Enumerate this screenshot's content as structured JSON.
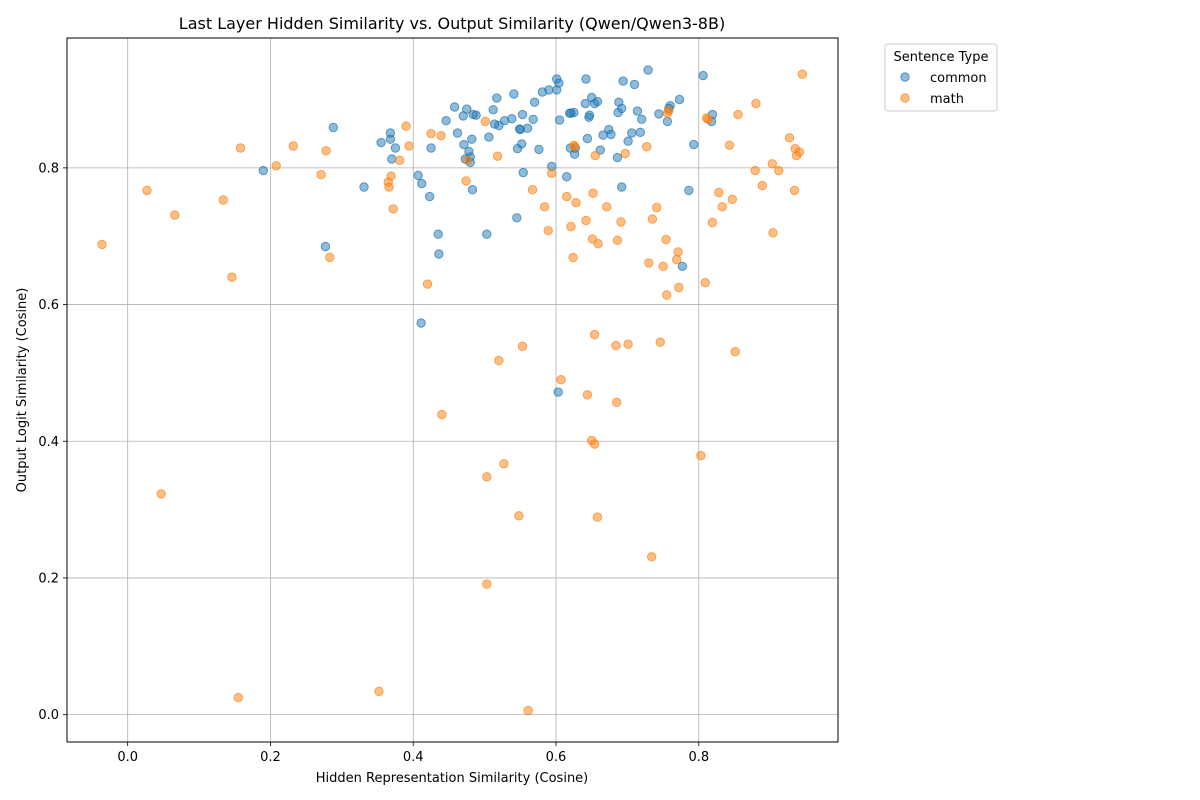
{
  "chart_data": {
    "type": "scatter",
    "title": "Last Layer Hidden Similarity vs. Output Similarity (Qwen/Qwen3-8B)",
    "xlabel": "Hidden Representation Similarity (Cosine)",
    "ylabel": "Output Logit Similarity (Cosine)",
    "xlim": [
      -0.085,
      0.995
    ],
    "ylim": [
      -0.04,
      0.99
    ],
    "xticks": [
      0.0,
      0.2,
      0.4,
      0.6,
      0.8
    ],
    "yticks": [
      0.0,
      0.2,
      0.4,
      0.6,
      0.8
    ],
    "xtick_labels": [
      "0.0",
      "0.2",
      "0.4",
      "0.6",
      "0.8"
    ],
    "ytick_labels": [
      "0.0",
      "0.2",
      "0.4",
      "0.6",
      "0.8"
    ],
    "grid": true,
    "legend": {
      "title": "Sentence Type",
      "placement": "outside-top-right"
    },
    "series": [
      {
        "name": "common",
        "color": "#1f77b4",
        "points": [
          [
            0.19,
            0.796
          ],
          [
            0.277,
            0.685
          ],
          [
            0.288,
            0.859
          ],
          [
            0.331,
            0.772
          ],
          [
            0.355,
            0.837
          ],
          [
            0.368,
            0.851
          ],
          [
            0.368,
            0.842
          ],
          [
            0.37,
            0.813
          ],
          [
            0.375,
            0.829
          ],
          [
            0.407,
            0.789
          ],
          [
            0.411,
            0.573
          ],
          [
            0.412,
            0.777
          ],
          [
            0.423,
            0.758
          ],
          [
            0.425,
            0.829
          ],
          [
            0.435,
            0.703
          ],
          [
            0.436,
            0.674
          ],
          [
            0.446,
            0.869
          ],
          [
            0.458,
            0.889
          ],
          [
            0.462,
            0.851
          ],
          [
            0.47,
            0.876
          ],
          [
            0.471,
            0.834
          ],
          [
            0.473,
            0.813
          ],
          [
            0.475,
            0.886
          ],
          [
            0.478,
            0.824
          ],
          [
            0.48,
            0.816
          ],
          [
            0.48,
            0.808
          ],
          [
            0.482,
            0.842
          ],
          [
            0.483,
            0.768
          ],
          [
            0.484,
            0.878
          ],
          [
            0.488,
            0.877
          ],
          [
            0.503,
            0.703
          ],
          [
            0.506,
            0.845
          ],
          [
            0.512,
            0.885
          ],
          [
            0.514,
            0.864
          ],
          [
            0.517,
            0.902
          ],
          [
            0.52,
            0.862
          ],
          [
            0.528,
            0.869
          ],
          [
            0.538,
            0.872
          ],
          [
            0.541,
            0.908
          ],
          [
            0.545,
            0.727
          ],
          [
            0.546,
            0.828
          ],
          [
            0.549,
            0.857
          ],
          [
            0.55,
            0.856
          ],
          [
            0.552,
            0.835
          ],
          [
            0.553,
            0.878
          ],
          [
            0.554,
            0.793
          ],
          [
            0.56,
            0.858
          ],
          [
            0.568,
            0.871
          ],
          [
            0.57,
            0.896
          ],
          [
            0.576,
            0.827
          ],
          [
            0.581,
            0.911
          ],
          [
            0.59,
            0.914
          ],
          [
            0.594,
            0.802
          ],
          [
            0.601,
            0.93
          ],
          [
            0.601,
            0.914
          ],
          [
            0.603,
            0.472
          ],
          [
            0.604,
            0.924
          ],
          [
            0.605,
            0.87
          ],
          [
            0.615,
            0.787
          ],
          [
            0.619,
            0.88
          ],
          [
            0.62,
            0.829
          ],
          [
            0.621,
            0.88
          ],
          [
            0.625,
            0.881
          ],
          [
            0.626,
            0.82
          ],
          [
            0.627,
            0.829
          ],
          [
            0.641,
            0.894
          ],
          [
            0.642,
            0.93
          ],
          [
            0.644,
            0.843
          ],
          [
            0.646,
            0.874
          ],
          [
            0.647,
            0.877
          ],
          [
            0.65,
            0.903
          ],
          [
            0.654,
            0.894
          ],
          [
            0.658,
            0.897
          ],
          [
            0.662,
            0.826
          ],
          [
            0.666,
            0.848
          ],
          [
            0.674,
            0.856
          ],
          [
            0.677,
            0.849
          ],
          [
            0.686,
            0.815
          ],
          [
            0.687,
            0.881
          ],
          [
            0.688,
            0.896
          ],
          [
            0.692,
            0.772
          ],
          [
            0.692,
            0.887
          ],
          [
            0.694,
            0.927
          ],
          [
            0.701,
            0.839
          ],
          [
            0.706,
            0.851
          ],
          [
            0.71,
            0.922
          ],
          [
            0.714,
            0.883
          ],
          [
            0.718,
            0.852
          ],
          [
            0.72,
            0.871
          ],
          [
            0.729,
            0.943
          ],
          [
            0.744,
            0.879
          ],
          [
            0.756,
            0.868
          ],
          [
            0.758,
            0.887
          ],
          [
            0.76,
            0.891
          ],
          [
            0.773,
            0.9
          ],
          [
            0.777,
            0.656
          ],
          [
            0.786,
            0.767
          ],
          [
            0.793,
            0.834
          ],
          [
            0.806,
            0.935
          ],
          [
            0.818,
            0.868
          ],
          [
            0.819,
            0.878
          ]
        ]
      },
      {
        "name": "math",
        "color": "#ff7f0e",
        "points": [
          [
            -0.036,
            0.688
          ],
          [
            0.027,
            0.767
          ],
          [
            0.047,
            0.323
          ],
          [
            0.066,
            0.731
          ],
          [
            0.134,
            0.753
          ],
          [
            0.146,
            0.64
          ],
          [
            0.155,
            0.025
          ],
          [
            0.158,
            0.829
          ],
          [
            0.208,
            0.803
          ],
          [
            0.232,
            0.832
          ],
          [
            0.271,
            0.79
          ],
          [
            0.278,
            0.825
          ],
          [
            0.283,
            0.669
          ],
          [
            0.352,
            0.034
          ],
          [
            0.365,
            0.779
          ],
          [
            0.366,
            0.772
          ],
          [
            0.369,
            0.788
          ],
          [
            0.372,
            0.74
          ],
          [
            0.381,
            0.811
          ],
          [
            0.39,
            0.861
          ],
          [
            0.394,
            0.832
          ],
          [
            0.42,
            0.63
          ],
          [
            0.425,
            0.85
          ],
          [
            0.439,
            0.847
          ],
          [
            0.44,
            0.439
          ],
          [
            0.474,
            0.781
          ],
          [
            0.476,
            0.811
          ],
          [
            0.501,
            0.868
          ],
          [
            0.503,
            0.348
          ],
          [
            0.503,
            0.191
          ],
          [
            0.518,
            0.817
          ],
          [
            0.52,
            0.518
          ],
          [
            0.527,
            0.367
          ],
          [
            0.548,
            0.291
          ],
          [
            0.553,
            0.539
          ],
          [
            0.561,
            0.006
          ],
          [
            0.567,
            0.768
          ],
          [
            0.584,
            0.743
          ],
          [
            0.589,
            0.708
          ],
          [
            0.594,
            0.792
          ],
          [
            0.607,
            0.49
          ],
          [
            0.615,
            0.758
          ],
          [
            0.621,
            0.714
          ],
          [
            0.624,
            0.669
          ],
          [
            0.625,
            0.833
          ],
          [
            0.626,
            0.831
          ],
          [
            0.628,
            0.749
          ],
          [
            0.642,
            0.723
          ],
          [
            0.644,
            0.468
          ],
          [
            0.65,
            0.401
          ],
          [
            0.651,
            0.696
          ],
          [
            0.652,
            0.763
          ],
          [
            0.654,
            0.556
          ],
          [
            0.654,
            0.396
          ],
          [
            0.655,
            0.818
          ],
          [
            0.658,
            0.289
          ],
          [
            0.659,
            0.689
          ],
          [
            0.671,
            0.743
          ],
          [
            0.684,
            0.54
          ],
          [
            0.685,
            0.457
          ],
          [
            0.686,
            0.694
          ],
          [
            0.691,
            0.721
          ],
          [
            0.697,
            0.821
          ],
          [
            0.701,
            0.542
          ],
          [
            0.727,
            0.831
          ],
          [
            0.73,
            0.661
          ],
          [
            0.734,
            0.231
          ],
          [
            0.735,
            0.725
          ],
          [
            0.741,
            0.742
          ],
          [
            0.746,
            0.545
          ],
          [
            0.75,
            0.656
          ],
          [
            0.754,
            0.695
          ],
          [
            0.755,
            0.614
          ],
          [
            0.756,
            0.88
          ],
          [
            0.758,
            0.884
          ],
          [
            0.769,
            0.666
          ],
          [
            0.771,
            0.677
          ],
          [
            0.772,
            0.625
          ],
          [
            0.803,
            0.379
          ],
          [
            0.809,
            0.632
          ],
          [
            0.811,
            0.873
          ],
          [
            0.813,
            0.871
          ],
          [
            0.819,
            0.72
          ],
          [
            0.828,
            0.764
          ],
          [
            0.833,
            0.743
          ],
          [
            0.843,
            0.833
          ],
          [
            0.847,
            0.754
          ],
          [
            0.851,
            0.531
          ],
          [
            0.855,
            0.878
          ],
          [
            0.879,
            0.796
          ],
          [
            0.88,
            0.894
          ],
          [
            0.889,
            0.774
          ],
          [
            0.903,
            0.806
          ],
          [
            0.904,
            0.705
          ],
          [
            0.912,
            0.796
          ],
          [
            0.927,
            0.844
          ],
          [
            0.934,
            0.767
          ],
          [
            0.935,
            0.828
          ],
          [
            0.937,
            0.818
          ],
          [
            0.941,
            0.823
          ],
          [
            0.945,
            0.937
          ]
        ]
      }
    ]
  }
}
